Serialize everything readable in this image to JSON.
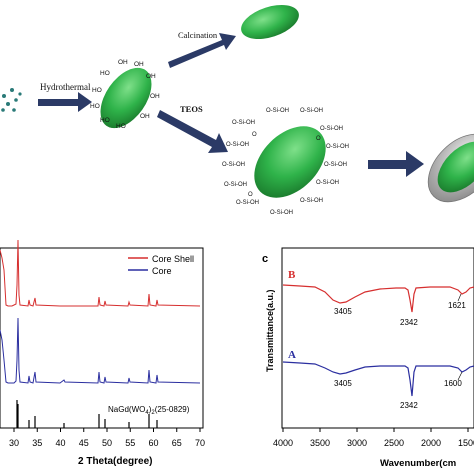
{
  "scheme": {
    "hydrothermal_label": "Hydrothermal",
    "calcination_label": "Calcination",
    "teos_label": "TEOS",
    "oh_label": "HO",
    "oh_label_right": "OH",
    "silica_group_label": "O-Si-OH",
    "oxygen_label": "O",
    "particle_color": "#2fb34a",
    "arrow_color": "#2b3a66",
    "shell_color": "#c8c8c8"
  },
  "panel_b": {
    "legend": [
      {
        "name": "Core Shell",
        "color": "#d62f2f"
      },
      {
        "name": "Core",
        "color": "#2b2fa0"
      }
    ],
    "reference_label": "NaGd(WO",
    "reference_sub": "4",
    "reference_suffix": ")",
    "reference_sub2": "2",
    "reference_code": "(25-0829)",
    "xlabel": "2 Theta(degree)",
    "x_ticks": [
      "30",
      "35",
      "40",
      "45",
      "50",
      "55",
      "60",
      "65",
      "70"
    ]
  },
  "chart_data": {
    "type": "line",
    "panel": "c",
    "panel_label": "c",
    "ylabel": "Transmittance(a.u.)",
    "xlabel": "Wavenumber(cm",
    "x_ticks": [
      "4000",
      "3500",
      "3000",
      "2500",
      "2000",
      "1500"
    ],
    "xlim": [
      4000,
      1500
    ],
    "series": [
      {
        "name": "B",
        "color": "#d62f2f",
        "annotations": [
          "3405",
          "2342",
          "1621"
        ]
      },
      {
        "name": "A",
        "color": "#2b2fa0",
        "annotations": [
          "3405",
          "2342",
          "1600"
        ]
      }
    ]
  }
}
